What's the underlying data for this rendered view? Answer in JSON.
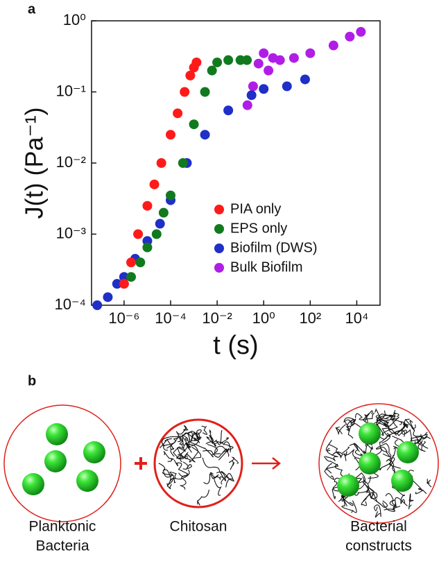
{
  "panel_a": "a",
  "panel_b": "b",
  "chart_data": {
    "type": "scatter",
    "x_label": "t (s)",
    "y_label": "J(t) (Pa⁻¹)",
    "x_log": true,
    "y_log": true,
    "grid": false,
    "legend": "lower right",
    "xlim": [
      4e-08,
      100000
    ],
    "ylim": [
      0.0001,
      1
    ],
    "xticks": [
      {
        "value": 1e-06,
        "label": "10⁻⁶"
      },
      {
        "value": 0.0001,
        "label": "10⁻⁴"
      },
      {
        "value": 0.01,
        "label": "10⁻²"
      },
      {
        "value": 1,
        "label": "10⁰"
      },
      {
        "value": 100,
        "label": "10²"
      },
      {
        "value": 10000,
        "label": "10⁴"
      }
    ],
    "yticks": [
      {
        "value": 0.0001,
        "label": "10⁻⁴"
      },
      {
        "value": 0.001,
        "label": "10⁻³"
      },
      {
        "value": 0.01,
        "label": "10⁻²"
      },
      {
        "value": 0.1,
        "label": "10⁻¹"
      },
      {
        "value": 1,
        "label": "10⁰"
      }
    ],
    "series": [
      {
        "name": "PIA only",
        "color": "#ff1a1a",
        "x": [
          1e-06,
          2e-06,
          4e-06,
          1e-05,
          2e-05,
          4e-05,
          0.0001,
          0.0002,
          0.0004,
          0.0007,
          0.001,
          0.0013
        ],
        "values": [
          0.0002,
          0.0004,
          0.001,
          0.0025,
          0.005,
          0.01,
          0.025,
          0.05,
          0.1,
          0.17,
          0.22,
          0.26
        ]
      },
      {
        "name": "EPS only",
        "color": "#117a1f",
        "x": [
          2e-06,
          5e-06,
          1e-05,
          2.5e-05,
          5e-05,
          0.0001,
          0.00034,
          0.001,
          0.003,
          0.006,
          0.01,
          0.03,
          0.1,
          0.19
        ],
        "values": [
          0.00025,
          0.0004,
          0.00065,
          0.001,
          0.002,
          0.0035,
          0.01,
          0.035,
          0.1,
          0.2,
          0.26,
          0.28,
          0.28,
          0.28
        ]
      },
      {
        "name": "Biofilm (DWS)",
        "color": "#1f2fc7",
        "x": [
          7e-08,
          2e-07,
          5e-07,
          1e-06,
          3e-06,
          1e-05,
          3.5e-05,
          0.0001,
          0.0005,
          0.003,
          0.03,
          0.3,
          1,
          10,
          60
        ],
        "values": [
          0.0001,
          0.00013,
          0.0002,
          0.00025,
          0.00045,
          0.0008,
          0.0014,
          0.003,
          0.01,
          0.025,
          0.055,
          0.09,
          0.11,
          0.12,
          0.15
        ]
      },
      {
        "name": "Bulk Biofilm",
        "color": "#b01ee6",
        "x": [
          0.2,
          0.35,
          0.6,
          1,
          1.6,
          2.5,
          5,
          20,
          100,
          1000,
          5000,
          15000
        ],
        "values": [
          0.065,
          0.12,
          0.25,
          0.35,
          0.2,
          0.3,
          0.28,
          0.3,
          0.35,
          0.45,
          0.6,
          0.7
        ]
      }
    ]
  },
  "diagram": {
    "items": [
      {
        "label": [
          "Planktonic",
          "Bacteria"
        ]
      },
      {
        "label": [
          "Chitosan"
        ]
      },
      {
        "label": [
          "Bacterial",
          "constructs"
        ]
      }
    ]
  }
}
